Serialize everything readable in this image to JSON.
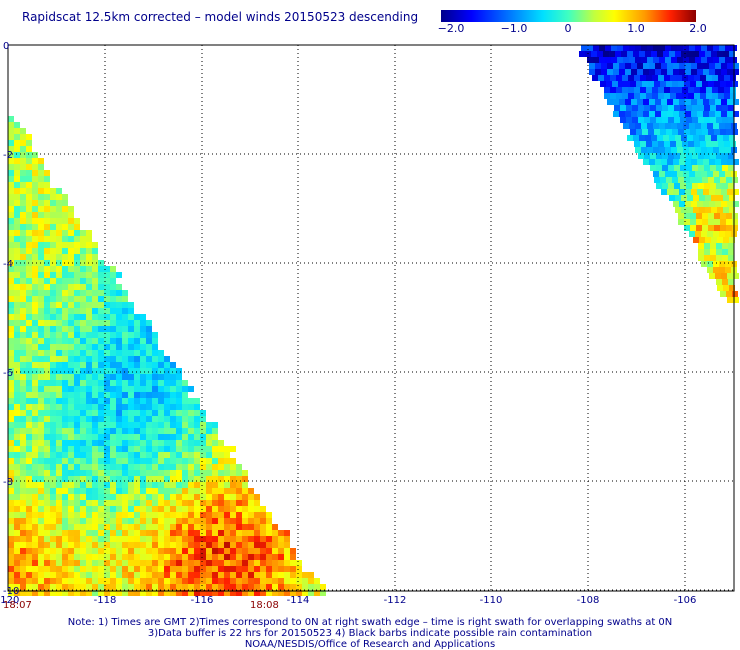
{
  "title": "Rapidscat 12.5km corrected – model winds 20150523 descending",
  "colorbar": {
    "ticks": [
      "−2.0",
      "−1.0",
      "0",
      "1.0",
      "2.0"
    ],
    "range": [
      -2.0,
      2.0
    ],
    "colors": [
      "#00008b",
      "#0000ff",
      "#00e0ff",
      "#ffff00",
      "#ff2000",
      "#8b0000"
    ]
  },
  "map": {
    "x_ticks": [
      "-120",
      "-118",
      "-116",
      "-114",
      "-112",
      "-110",
      "-108",
      "-106"
    ],
    "y_ticks": [
      "0",
      "-2",
      "-4",
      "-6",
      "-8",
      "-10"
    ],
    "lon_range": [
      -120,
      -105.5
    ],
    "lat_range": [
      0,
      -10
    ]
  },
  "times": {
    "left": "18:07",
    "mid": "18:08"
  },
  "notes": {
    "line1": "Note: 1) Times are GMT 2)Times correspond to 0N at right swath edge – time is right swath for overlapping swaths at 0N",
    "line2": "3)Data buffer is 22 hrs for 20150523 4) Black barbs indicate possible rain contamination",
    "line3": "NOAA/NESDIS/Office of Research and Applications"
  }
}
